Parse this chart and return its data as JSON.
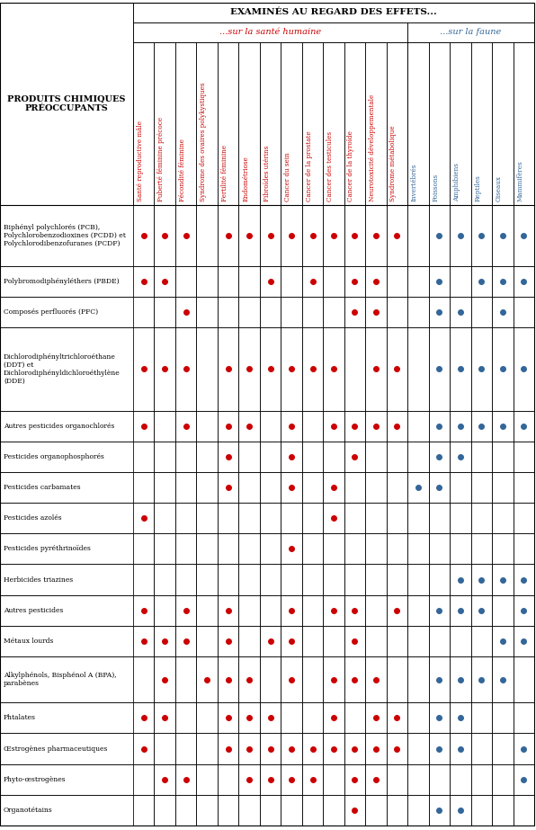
{
  "title_main": "EXAMINÉS AU REGARD DES EFFETS...",
  "title_human": "...sur la santé humaine",
  "title_fauna": "...sur la faune",
  "col_header_left": "PRODUITS CHIMIQUES\nPRÉOCCUPANTS",
  "human_cols": [
    "Santé reproductive mâle",
    "Puberté féminine précoce",
    "Fécondité féminine",
    "Syndrome des ovaires polykystiques",
    "Fertilité féminine",
    "Endométriose",
    "Fibroïdes utérins",
    "Cancer du sein",
    "Cancer de la prostate",
    "Cancer des testicules",
    "Cancer de la thyroïde",
    "Neurotoxicité développementale",
    "Syndrome métabolique"
  ],
  "fauna_cols": [
    "Invertébrés",
    "Poissons",
    "Amphibiens",
    "Reptiles",
    "Oiseaux",
    "Mammifères"
  ],
  "rows": [
    {
      "label": "Biphényl polychlorés (PCB),\nPolychlorobenzodioxines (PCDD) et\nPolychlorodibenzofuranes (PCDF)",
      "human": [
        1,
        1,
        1,
        0,
        1,
        1,
        1,
        1,
        1,
        1,
        1,
        1,
        1
      ],
      "fauna": [
        0,
        1,
        1,
        1,
        1,
        1
      ],
      "nlines": 3
    },
    {
      "label": "Polybromodiphényléthers (PBDE)",
      "human": [
        1,
        1,
        0,
        0,
        0,
        0,
        1,
        0,
        1,
        0,
        1,
        1,
        0
      ],
      "fauna": [
        0,
        1,
        0,
        1,
        1,
        1
      ],
      "nlines": 1
    },
    {
      "label": "Composés perfluorés (PFC)",
      "human": [
        0,
        0,
        1,
        0,
        0,
        0,
        0,
        0,
        0,
        0,
        1,
        1,
        0
      ],
      "fauna": [
        0,
        1,
        1,
        0,
        1,
        0
      ],
      "nlines": 1
    },
    {
      "label": "Dichlorodiphényltrichloroéthane\n(DDT) et\nDichlorodiphényldichloroéthylène\n(DDE)",
      "human": [
        1,
        1,
        1,
        0,
        1,
        1,
        1,
        1,
        1,
        1,
        0,
        1,
        1
      ],
      "fauna": [
        0,
        1,
        1,
        1,
        1,
        1
      ],
      "nlines": 4
    },
    {
      "label": "Autres pesticides organochlorés",
      "human": [
        1,
        0,
        1,
        0,
        1,
        1,
        0,
        1,
        0,
        1,
        1,
        1,
        1
      ],
      "fauna": [
        0,
        1,
        1,
        1,
        1,
        1
      ],
      "nlines": 1
    },
    {
      "label": "Pesticides organophosphorés",
      "human": [
        0,
        0,
        0,
        0,
        1,
        0,
        0,
        1,
        0,
        0,
        1,
        0,
        0
      ],
      "fauna": [
        0,
        1,
        1,
        0,
        0,
        0
      ],
      "nlines": 1
    },
    {
      "label": "Pesticides carbamates",
      "human": [
        0,
        0,
        0,
        0,
        1,
        0,
        0,
        1,
        0,
        1,
        0,
        0,
        0
      ],
      "fauna": [
        1,
        1,
        0,
        0,
        0,
        0
      ],
      "nlines": 1
    },
    {
      "label": "Pesticides azolés",
      "human": [
        1,
        0,
        0,
        0,
        0,
        0,
        0,
        0,
        0,
        1,
        0,
        0,
        0
      ],
      "fauna": [
        0,
        0,
        0,
        0,
        0,
        0
      ],
      "nlines": 1
    },
    {
      "label": "Pesticides pyréthrinoïdes",
      "human": [
        0,
        0,
        0,
        0,
        0,
        0,
        0,
        1,
        0,
        0,
        0,
        0,
        0
      ],
      "fauna": [
        0,
        0,
        0,
        0,
        0,
        0
      ],
      "nlines": 1
    },
    {
      "label": "Herbicides triazines",
      "human": [
        0,
        0,
        0,
        0,
        0,
        0,
        0,
        0,
        0,
        0,
        0,
        0,
        0
      ],
      "fauna": [
        0,
        0,
        1,
        1,
        1,
        1
      ],
      "nlines": 1
    },
    {
      "label": "Autres pesticides",
      "human": [
        1,
        0,
        1,
        0,
        1,
        0,
        0,
        1,
        0,
        1,
        1,
        0,
        1
      ],
      "fauna": [
        0,
        1,
        1,
        1,
        0,
        1
      ],
      "nlines": 1
    },
    {
      "label": "Métaux lourds",
      "human": [
        1,
        1,
        1,
        0,
        1,
        0,
        1,
        1,
        0,
        0,
        1,
        0,
        0
      ],
      "fauna": [
        0,
        0,
        0,
        0,
        1,
        1
      ],
      "nlines": 1
    },
    {
      "label": "Alkylphénols, Bisphénol A (BPA),\nparabènes",
      "human": [
        0,
        1,
        0,
        1,
        1,
        1,
        0,
        1,
        0,
        1,
        1,
        1,
        0
      ],
      "fauna": [
        0,
        1,
        1,
        1,
        1,
        0
      ],
      "nlines": 2
    },
    {
      "label": "Phtalates",
      "human": [
        1,
        1,
        0,
        0,
        1,
        1,
        1,
        0,
        0,
        1,
        0,
        1,
        1
      ],
      "fauna": [
        0,
        1,
        1,
        0,
        0,
        0
      ],
      "nlines": 1
    },
    {
      "label": "Œstrogènes pharmaceutiques",
      "human": [
        1,
        0,
        0,
        0,
        1,
        1,
        1,
        1,
        1,
        1,
        1,
        1,
        1
      ],
      "fauna": [
        0,
        1,
        1,
        0,
        0,
        1
      ],
      "nlines": 1
    },
    {
      "label": "Phyto-œstrogènes",
      "human": [
        0,
        1,
        1,
        0,
        0,
        1,
        1,
        1,
        1,
        0,
        1,
        1,
        0
      ],
      "fauna": [
        0,
        0,
        0,
        0,
        0,
        1
      ],
      "nlines": 1
    },
    {
      "label": "Organotétains",
      "human": [
        0,
        0,
        0,
        0,
        0,
        0,
        0,
        0,
        0,
        0,
        1,
        0,
        0
      ],
      "fauna": [
        0,
        1,
        1,
        0,
        0,
        0
      ],
      "nlines": 1
    }
  ],
  "red_color": "#CC0000",
  "blue_color": "#336699"
}
